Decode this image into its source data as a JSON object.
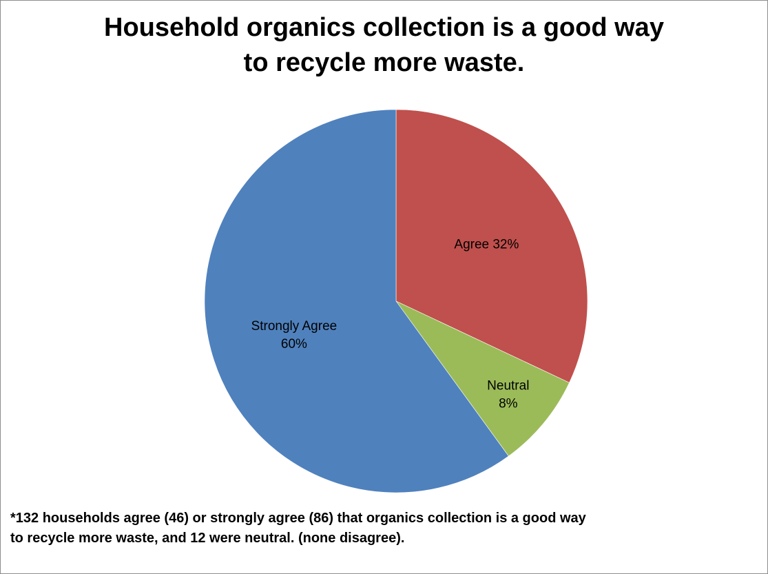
{
  "chart_data": {
    "type": "pie",
    "title_lines": [
      "Household organics collection is a good way",
      "to recycle more waste."
    ],
    "slices": [
      {
        "name": "Agree",
        "label_lines": [
          "Agree 32%"
        ],
        "value": 32,
        "color": "#c0504d"
      },
      {
        "name": "Neutral",
        "label_lines": [
          "Neutral",
          "8%"
        ],
        "value": 8,
        "color": "#9bbb59"
      },
      {
        "name": "Strongly Agree",
        "label_lines": [
          "Strongly Agree",
          "60%"
        ],
        "value": 60,
        "color": "#4f81bd"
      }
    ],
    "start_angle": "12 o'clock, clockwise",
    "legend": "none"
  },
  "footnote": {
    "lines": [
      "*132 households agree (46) or strongly agree (86) that organics collection is a good way",
      "to recycle more waste, and 12 were neutral. (none disagree)."
    ]
  }
}
